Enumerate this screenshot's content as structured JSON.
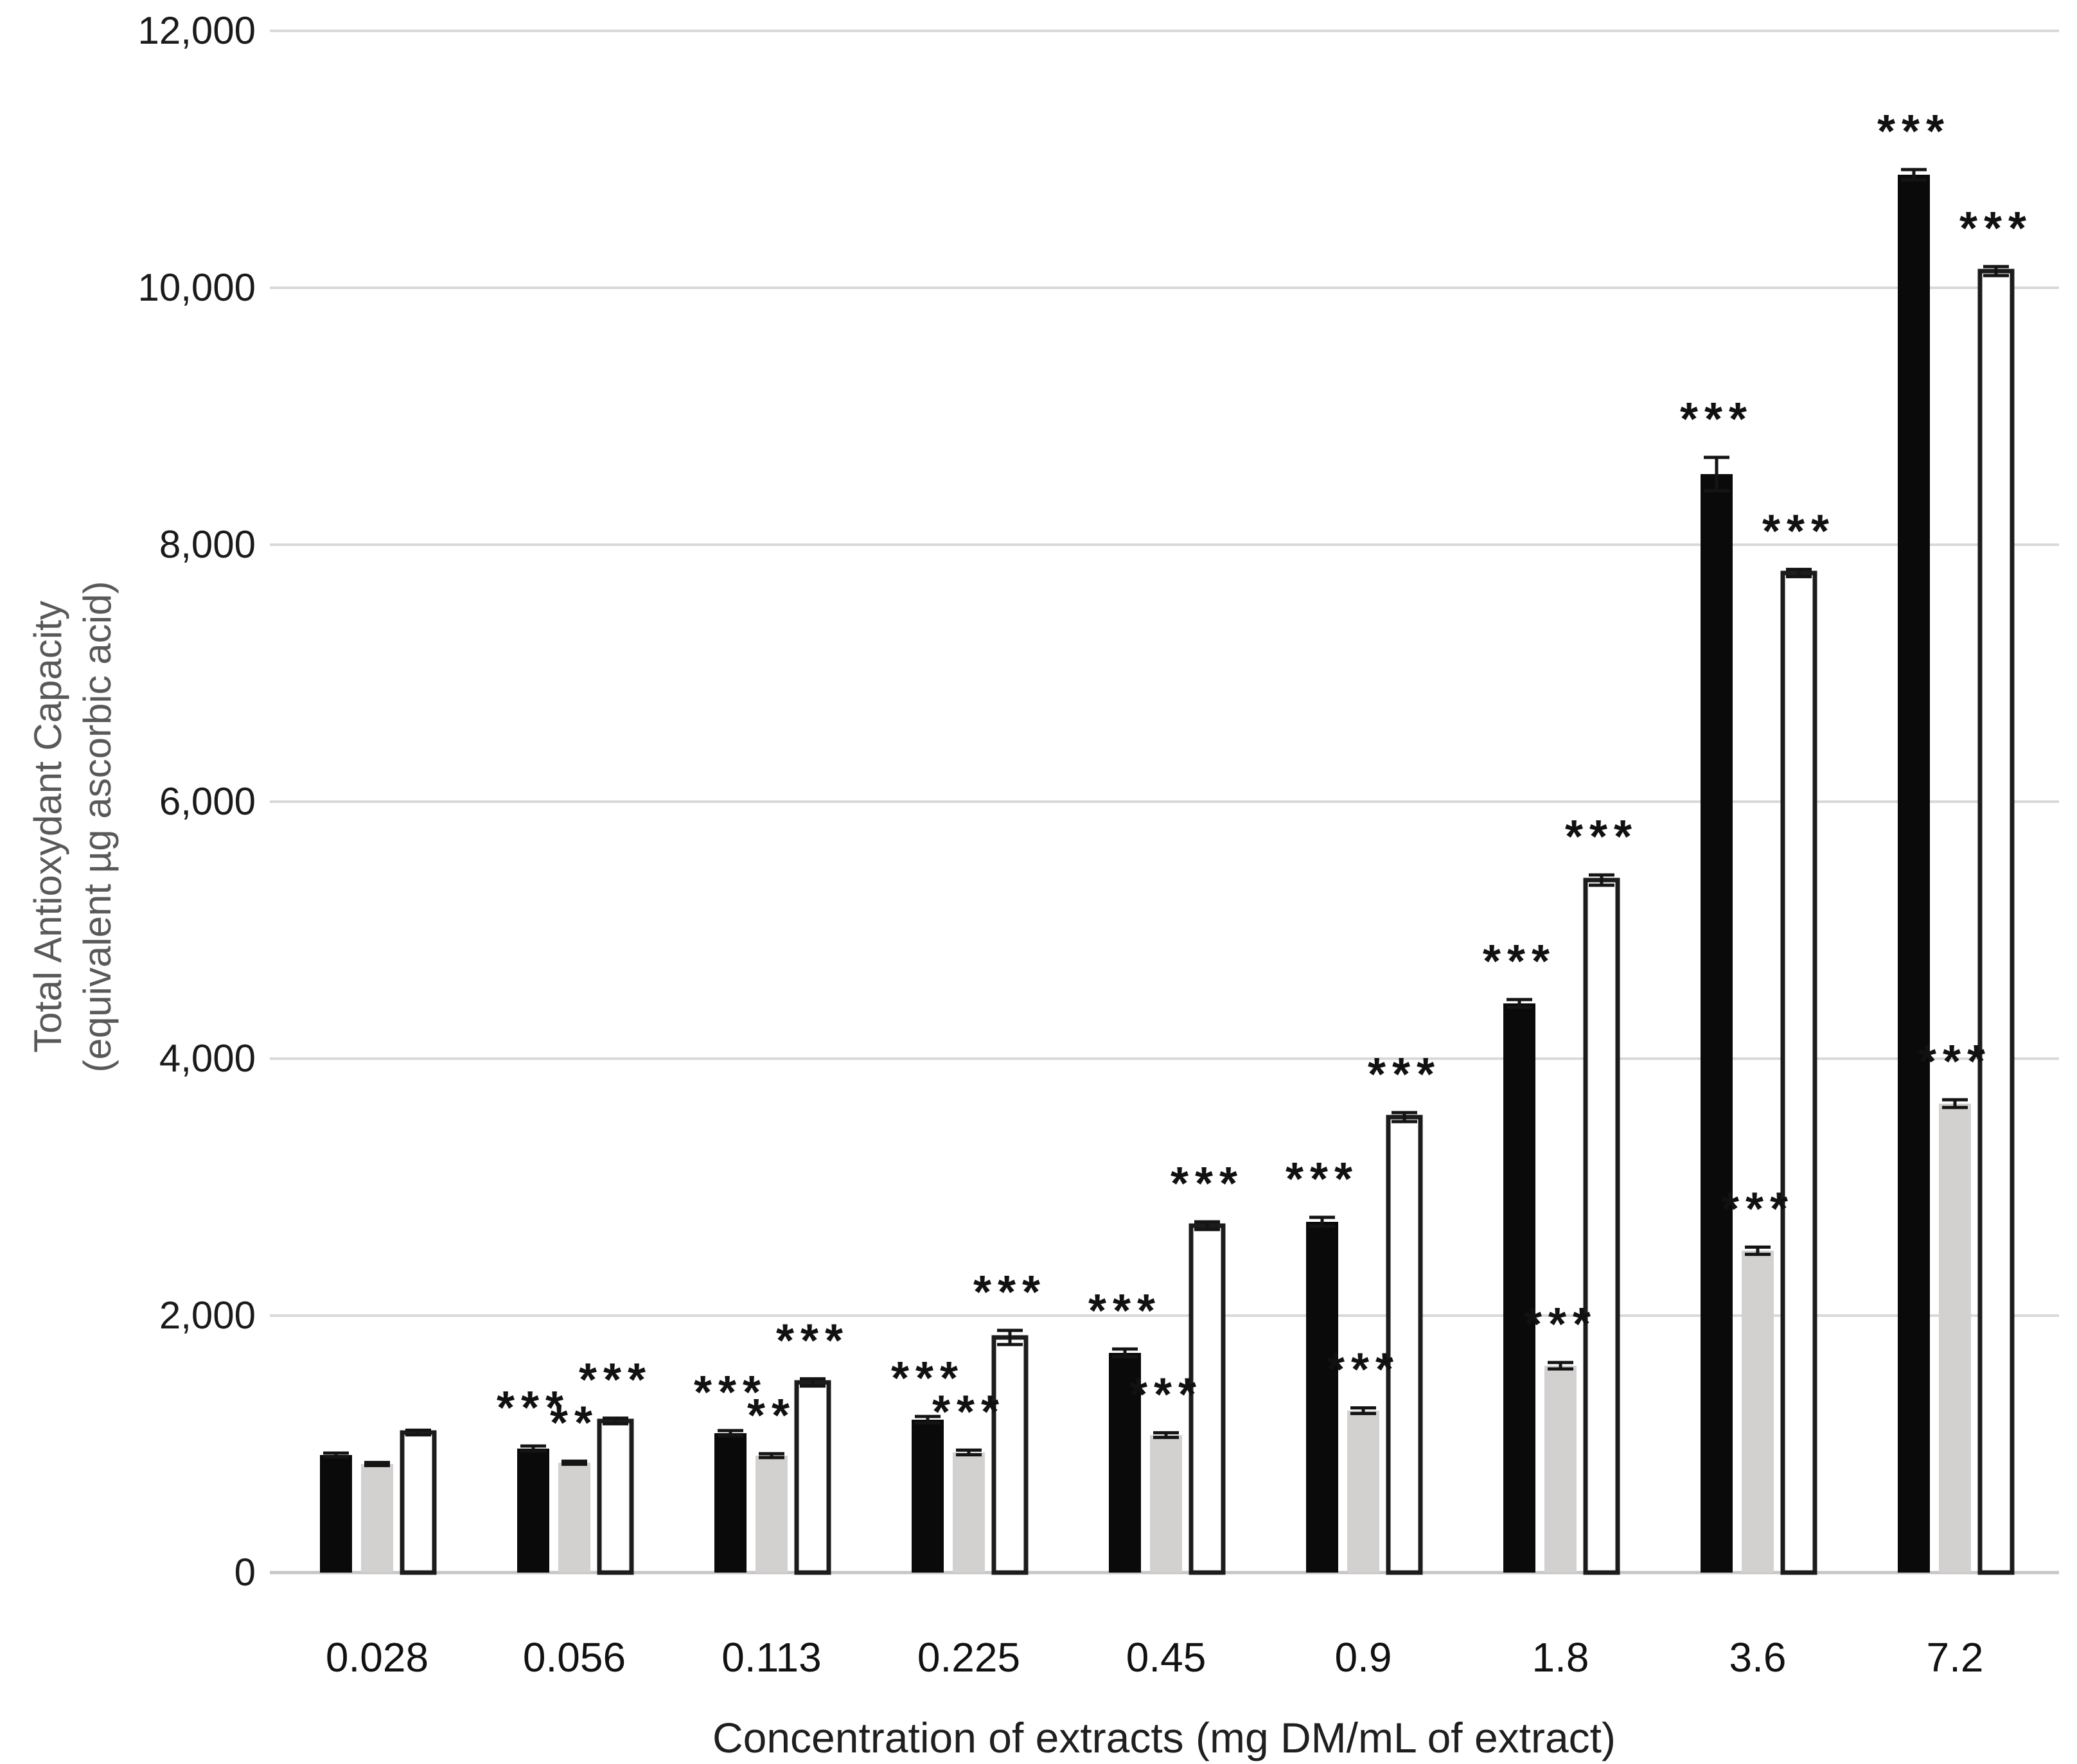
{
  "page": {
    "background": "#ffffff"
  },
  "chart_data": {
    "type": "bar",
    "title": "",
    "xlabel": "Concentration of extracts (mg DM/mL of extract)",
    "ylabel_lines": [
      "Total Antioxydant Capacity",
      "(equivalent µg ascorbic acid)"
    ],
    "categories": [
      "0.028",
      "0.056",
      "0.113",
      "0.225",
      "0.45",
      "0.9",
      "1.8",
      "3.6",
      "7.2"
    ],
    "ylim": [
      0,
      12000
    ],
    "grid": "horizontal",
    "legend_position": "none",
    "y_ticks": [
      {
        "label": "0",
        "value": 0
      },
      {
        "label": "2,000",
        "value": 2000
      },
      {
        "label": "4,000",
        "value": 4000
      },
      {
        "label": "6,000",
        "value": 6000
      },
      {
        "label": "8,000",
        "value": 8000
      },
      {
        "label": "10,000",
        "value": 10000
      },
      {
        "label": "12,000",
        "value": 12000
      }
    ],
    "series": [
      {
        "name": "black-filled-bars",
        "fill": "#0a0a0a",
        "stroke": "none",
        "values": [
          915,
          965,
          1085,
          1190,
          1710,
          2730,
          4430,
          8550,
          10880
        ],
        "errors": [
          15,
          20,
          20,
          25,
          30,
          35,
          30,
          130,
          40
        ],
        "significance": [
          "",
          "***",
          "***",
          "***",
          "***",
          "***",
          "***",
          "***",
          "***"
        ]
      },
      {
        "name": "grey-filled-bars",
        "fill": "#d3d0d0",
        "stroke": "none",
        "values": [
          845,
          855,
          910,
          935,
          1070,
          1260,
          1610,
          2505,
          3650
        ],
        "errors": [
          12,
          12,
          15,
          18,
          18,
          22,
          25,
          28,
          30
        ],
        "significance": [
          "",
          "**",
          "**",
          "***",
          "***",
          "***",
          "***",
          "***",
          "***"
        ]
      },
      {
        "name": "white-outlined-bars",
        "fill": "#ffffff",
        "stroke": "#1c1c1c",
        "values": [
          1090,
          1180,
          1480,
          1830,
          2700,
          3545,
          5390,
          7780,
          10130
        ],
        "errors": [
          18,
          22,
          28,
          55,
          30,
          35,
          40,
          28,
          35
        ],
        "significance": [
          "",
          "***",
          "***",
          "***",
          "***",
          "***",
          "***",
          "***",
          "***"
        ]
      }
    ],
    "colors": {
      "gridline": "#d9d9d9",
      "baseline": "#c6c6c6",
      "error_bar": "#141414",
      "bar_black": "#0a0a0a",
      "bar_grey": "#d3d0d0",
      "bar_white_outline": "#1c1c1c"
    }
  }
}
